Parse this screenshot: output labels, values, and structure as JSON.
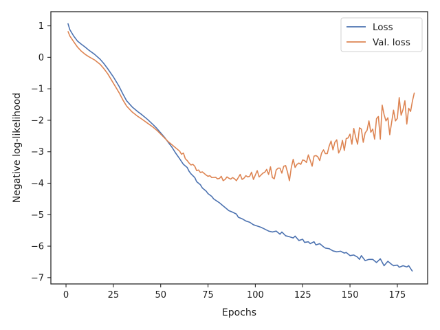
{
  "chart_data": {
    "type": "line",
    "xlabel": "Epochs",
    "ylabel": "Negative log-likelihood",
    "xlim": [
      -8,
      191
    ],
    "ylim": [
      -7.2,
      1.45
    ],
    "xticks": [
      0,
      25,
      50,
      75,
      100,
      125,
      150,
      175
    ],
    "xtick_labels": [
      "0",
      "25",
      "50",
      "75",
      "100",
      "125",
      "150",
      "175"
    ],
    "yticks": [
      1,
      0,
      -1,
      -2,
      -3,
      -4,
      -5,
      -6,
      -7
    ],
    "ytick_labels": [
      "1",
      "0",
      "−1",
      "−2",
      "−3",
      "−4",
      "−5",
      "−6",
      "−7"
    ],
    "grid": false,
    "legend_position": "top-right",
    "series": [
      {
        "name": "Loss",
        "color": "#4c72b0",
        "points": [
          [
            1,
            1.08
          ],
          [
            2,
            0.88
          ],
          [
            4,
            0.68
          ],
          [
            6,
            0.52
          ],
          [
            8,
            0.42
          ],
          [
            10,
            0.33
          ],
          [
            12,
            0.23
          ],
          [
            15,
            0.1
          ],
          [
            18,
            -0.06
          ],
          [
            20,
            -0.2
          ],
          [
            22,
            -0.36
          ],
          [
            25,
            -0.62
          ],
          [
            28,
            -0.92
          ],
          [
            30,
            -1.16
          ],
          [
            32,
            -1.38
          ],
          [
            35,
            -1.58
          ],
          [
            38,
            -1.73
          ],
          [
            40,
            -1.82
          ],
          [
            43,
            -1.97
          ],
          [
            46,
            -2.14
          ],
          [
            48,
            -2.26
          ],
          [
            50,
            -2.4
          ],
          [
            52,
            -2.54
          ],
          [
            54,
            -2.7
          ],
          [
            56,
            -2.86
          ],
          [
            58,
            -3.05
          ],
          [
            60,
            -3.22
          ],
          [
            62,
            -3.4
          ],
          [
            64,
            -3.5
          ],
          [
            65,
            -3.62
          ],
          [
            66,
            -3.7
          ],
          [
            68,
            -3.82
          ],
          [
            69,
            -3.95
          ],
          [
            71,
            -4.05
          ],
          [
            72,
            -4.15
          ],
          [
            74,
            -4.25
          ],
          [
            75,
            -4.33
          ],
          [
            77,
            -4.42
          ],
          [
            78,
            -4.5
          ],
          [
            80,
            -4.58
          ],
          [
            81,
            -4.62
          ],
          [
            83,
            -4.72
          ],
          [
            84,
            -4.77
          ],
          [
            86,
            -4.87
          ],
          [
            88,
            -4.92
          ],
          [
            90,
            -4.98
          ],
          [
            91,
            -5.08
          ],
          [
            93,
            -5.13
          ],
          [
            95,
            -5.2
          ],
          [
            97,
            -5.24
          ],
          [
            99,
            -5.32
          ],
          [
            101,
            -5.36
          ],
          [
            103,
            -5.4
          ],
          [
            105,
            -5.46
          ],
          [
            107,
            -5.52
          ],
          [
            109,
            -5.55
          ],
          [
            111,
            -5.52
          ],
          [
            113,
            -5.62
          ],
          [
            114,
            -5.55
          ],
          [
            116,
            -5.67
          ],
          [
            118,
            -5.7
          ],
          [
            120,
            -5.74
          ],
          [
            121,
            -5.68
          ],
          [
            123,
            -5.82
          ],
          [
            125,
            -5.78
          ],
          [
            126,
            -5.88
          ],
          [
            128,
            -5.86
          ],
          [
            129,
            -5.92
          ],
          [
            131,
            -5.86
          ],
          [
            132,
            -5.96
          ],
          [
            134,
            -5.92
          ],
          [
            136,
            -6.02
          ],
          [
            137,
            -6.06
          ],
          [
            139,
            -6.08
          ],
          [
            141,
            -6.15
          ],
          [
            143,
            -6.18
          ],
          [
            145,
            -6.16
          ],
          [
            147,
            -6.22
          ],
          [
            148,
            -6.2
          ],
          [
            150,
            -6.3
          ],
          [
            152,
            -6.28
          ],
          [
            154,
            -6.35
          ],
          [
            155,
            -6.42
          ],
          [
            156,
            -6.3
          ],
          [
            158,
            -6.46
          ],
          [
            160,
            -6.42
          ],
          [
            162,
            -6.42
          ],
          [
            164,
            -6.52
          ],
          [
            166,
            -6.4
          ],
          [
            168,
            -6.62
          ],
          [
            169,
            -6.55
          ],
          [
            170,
            -6.48
          ],
          [
            172,
            -6.58
          ],
          [
            173,
            -6.62
          ],
          [
            175,
            -6.6
          ],
          [
            176,
            -6.67
          ],
          [
            178,
            -6.62
          ],
          [
            180,
            -6.66
          ],
          [
            181,
            -6.62
          ],
          [
            183,
            -6.8
          ]
        ]
      },
      {
        "name": "Val. loss",
        "color": "#dd8452",
        "points": [
          [
            1,
            0.83
          ],
          [
            2,
            0.68
          ],
          [
            4,
            0.5
          ],
          [
            6,
            0.33
          ],
          [
            8,
            0.2
          ],
          [
            10,
            0.1
          ],
          [
            12,
            0.02
          ],
          [
            15,
            -0.08
          ],
          [
            18,
            -0.22
          ],
          [
            20,
            -0.36
          ],
          [
            22,
            -0.52
          ],
          [
            25,
            -0.82
          ],
          [
            28,
            -1.12
          ],
          [
            30,
            -1.35
          ],
          [
            32,
            -1.55
          ],
          [
            35,
            -1.74
          ],
          [
            38,
            -1.88
          ],
          [
            40,
            -1.96
          ],
          [
            43,
            -2.09
          ],
          [
            46,
            -2.22
          ],
          [
            48,
            -2.32
          ],
          [
            50,
            -2.44
          ],
          [
            52,
            -2.56
          ],
          [
            54,
            -2.68
          ],
          [
            56,
            -2.78
          ],
          [
            58,
            -2.88
          ],
          [
            60,
            -2.98
          ],
          [
            61,
            -3.08
          ],
          [
            62,
            -3.04
          ],
          [
            63,
            -3.22
          ],
          [
            64,
            -3.28
          ],
          [
            65,
            -3.36
          ],
          [
            66,
            -3.42
          ],
          [
            67,
            -3.4
          ],
          [
            68,
            -3.46
          ],
          [
            69,
            -3.6
          ],
          [
            70,
            -3.58
          ],
          [
            71,
            -3.66
          ],
          [
            72,
            -3.64
          ],
          [
            74,
            -3.74
          ],
          [
            75,
            -3.78
          ],
          [
            76,
            -3.76
          ],
          [
            77,
            -3.82
          ],
          [
            79,
            -3.81
          ],
          [
            80,
            -3.86
          ],
          [
            81,
            -3.85
          ],
          [
            82,
            -3.78
          ],
          [
            83,
            -3.92
          ],
          [
            84,
            -3.88
          ],
          [
            85,
            -3.8
          ],
          [
            86,
            -3.84
          ],
          [
            87,
            -3.87
          ],
          [
            88,
            -3.82
          ],
          [
            89,
            -3.86
          ],
          [
            90,
            -3.92
          ],
          [
            91,
            -3.82
          ],
          [
            92,
            -3.72
          ],
          [
            93,
            -3.88
          ],
          [
            94,
            -3.84
          ],
          [
            95,
            -3.76
          ],
          [
            96,
            -3.8
          ],
          [
            97,
            -3.78
          ],
          [
            98,
            -3.65
          ],
          [
            99,
            -3.88
          ],
          [
            100,
            -3.74
          ],
          [
            101,
            -3.6
          ],
          [
            102,
            -3.8
          ],
          [
            103,
            -3.74
          ],
          [
            104,
            -3.68
          ],
          [
            105,
            -3.65
          ],
          [
            106,
            -3.56
          ],
          [
            107,
            -3.72
          ],
          [
            108,
            -3.48
          ],
          [
            109,
            -3.82
          ],
          [
            110,
            -3.86
          ],
          [
            111,
            -3.58
          ],
          [
            112,
            -3.52
          ],
          [
            113,
            -3.52
          ],
          [
            114,
            -3.68
          ],
          [
            115,
            -3.46
          ],
          [
            116,
            -3.44
          ],
          [
            117,
            -3.65
          ],
          [
            118,
            -3.92
          ],
          [
            119,
            -3.5
          ],
          [
            120,
            -3.24
          ],
          [
            121,
            -3.5
          ],
          [
            122,
            -3.4
          ],
          [
            123,
            -3.36
          ],
          [
            124,
            -3.4
          ],
          [
            125,
            -3.26
          ],
          [
            126,
            -3.28
          ],
          [
            127,
            -3.34
          ],
          [
            128,
            -3.1
          ],
          [
            129,
            -3.28
          ],
          [
            130,
            -3.46
          ],
          [
            131,
            -3.14
          ],
          [
            132,
            -3.12
          ],
          [
            133,
            -3.16
          ],
          [
            134,
            -3.28
          ],
          [
            135,
            -3.04
          ],
          [
            136,
            -2.94
          ],
          [
            137,
            -3.06
          ],
          [
            138,
            -3.06
          ],
          [
            139,
            -2.82
          ],
          [
            140,
            -2.66
          ],
          [
            141,
            -2.94
          ],
          [
            142,
            -2.7
          ],
          [
            143,
            -2.62
          ],
          [
            144,
            -3.04
          ],
          [
            145,
            -2.92
          ],
          [
            146,
            -2.64
          ],
          [
            147,
            -2.96
          ],
          [
            148,
            -2.58
          ],
          [
            149,
            -2.56
          ],
          [
            150,
            -2.44
          ],
          [
            151,
            -2.76
          ],
          [
            152,
            -2.26
          ],
          [
            153,
            -2.54
          ],
          [
            154,
            -2.76
          ],
          [
            155,
            -2.24
          ],
          [
            156,
            -2.28
          ],
          [
            157,
            -2.7
          ],
          [
            158,
            -2.4
          ],
          [
            159,
            -2.32
          ],
          [
            160,
            -2.02
          ],
          [
            161,
            -2.38
          ],
          [
            162,
            -2.28
          ],
          [
            163,
            -2.6
          ],
          [
            164,
            -1.95
          ],
          [
            165,
            -1.88
          ],
          [
            166,
            -2.6
          ],
          [
            167,
            -1.52
          ],
          [
            168,
            -1.82
          ],
          [
            169,
            -2.02
          ],
          [
            170,
            -1.92
          ],
          [
            171,
            -2.46
          ],
          [
            172,
            -2.06
          ],
          [
            173,
            -1.68
          ],
          [
            174,
            -2.02
          ],
          [
            175,
            -1.94
          ],
          [
            176,
            -1.28
          ],
          [
            177,
            -1.84
          ],
          [
            178,
            -1.66
          ],
          [
            179,
            -1.38
          ],
          [
            180,
            -2.12
          ],
          [
            181,
            -1.62
          ],
          [
            182,
            -1.72
          ],
          [
            183,
            -1.38
          ],
          [
            184,
            -1.12
          ]
        ]
      }
    ]
  }
}
